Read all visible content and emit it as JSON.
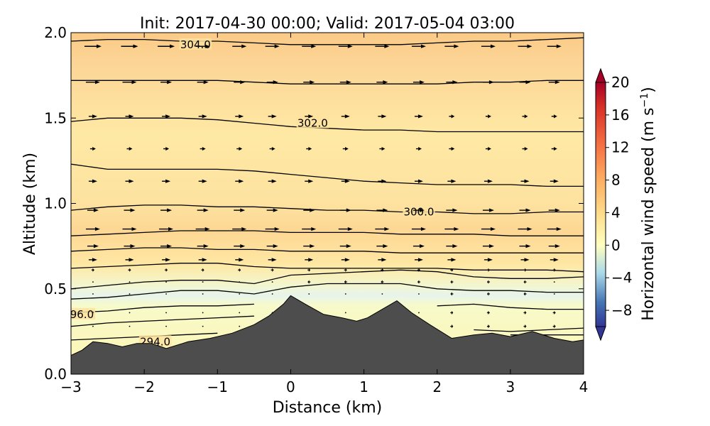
{
  "chart_data": {
    "type": "contour-cross-section",
    "title": "Init: 2017-04-30 00:00; Valid: 2017-05-04 03:00",
    "xlabel": "Distance (km)",
    "ylabel": "Altitude (km)",
    "xlim": [
      -3,
      4
    ],
    "ylim": [
      0,
      2
    ],
    "xticks": [
      -3,
      -2,
      -1,
      0,
      1,
      2,
      3,
      4
    ],
    "xtick_labels": [
      "−3",
      "−2",
      "−1",
      "0",
      "1",
      "2",
      "3",
      "4"
    ],
    "yticks": [
      0,
      0.5,
      1,
      1.5,
      2
    ],
    "ytick_labels": [
      "0.0",
      "0.5",
      "1.0",
      "1.5",
      "2.0"
    ],
    "colorbar": {
      "label": "Horizontal wind speed (m s",
      "label_superscript": "−1",
      "label_close": ")",
      "range": [
        -10,
        20
      ],
      "ticks": [
        20,
        16,
        12,
        8,
        4,
        0,
        -4,
        -8
      ],
      "tick_labels": [
        "20",
        "16",
        "12",
        "8",
        "4",
        "0",
        "−4",
        "−8"
      ],
      "extend": "both",
      "colormap": "RdYlBu_r"
    },
    "terrain": {
      "color": "#4d4d4d",
      "x": [
        -3,
        -2.85,
        -2.7,
        -2.5,
        -2.3,
        -2.1,
        -1.9,
        -1.7,
        -1.4,
        -1.1,
        -0.8,
        -0.5,
        -0.3,
        -0.1,
        0,
        0.2,
        0.45,
        0.7,
        0.9,
        1.05,
        1.25,
        1.45,
        1.65,
        1.9,
        2.2,
        2.5,
        2.75,
        3.0,
        3.3,
        3.6,
        3.85,
        4.0
      ],
      "y": [
        0.11,
        0.14,
        0.19,
        0.18,
        0.16,
        0.18,
        0.18,
        0.15,
        0.19,
        0.21,
        0.24,
        0.29,
        0.34,
        0.41,
        0.46,
        0.41,
        0.35,
        0.33,
        0.31,
        0.33,
        0.38,
        0.43,
        0.36,
        0.29,
        0.21,
        0.23,
        0.24,
        0.22,
        0.25,
        0.21,
        0.19,
        0.2
      ]
    },
    "theta_contours": {
      "x": [
        -3,
        -2.5,
        -2,
        -1.5,
        -1,
        -0.5,
        0,
        0.5,
        1,
        1.5,
        2,
        2.5,
        3,
        3.5,
        4
      ],
      "levels": [
        {
          "y": [
            1.95,
            1.96,
            1.96,
            1.95,
            1.95,
            1.94,
            1.93,
            1.93,
            1.93,
            1.93,
            1.94,
            1.95,
            1.95,
            1.96,
            1.97
          ]
        },
        {
          "y": [
            1.72,
            1.72,
            1.72,
            1.72,
            1.72,
            1.71,
            1.7,
            1.7,
            1.7,
            1.7,
            1.7,
            1.71,
            1.71,
            1.72,
            1.72
          ]
        },
        {
          "y": [
            1.48,
            1.5,
            1.5,
            1.5,
            1.49,
            1.47,
            1.45,
            1.44,
            1.43,
            1.43,
            1.42,
            1.42,
            1.42,
            1.42,
            1.42
          ]
        },
        {
          "y": [
            1.23,
            1.2,
            1.2,
            1.2,
            1.2,
            1.19,
            1.17,
            1.15,
            1.13,
            1.12,
            1.11,
            1.11,
            1.11,
            1.1,
            1.1
          ]
        },
        {
          "y": [
            0.96,
            0.98,
            0.99,
            0.99,
            0.98,
            0.98,
            0.97,
            0.96,
            0.96,
            0.95,
            0.95,
            0.94,
            0.94,
            0.95,
            0.95
          ]
        },
        {
          "y": [
            0.81,
            0.82,
            0.83,
            0.84,
            0.84,
            0.84,
            0.83,
            0.83,
            0.83,
            0.82,
            0.82,
            0.82,
            0.81,
            0.81,
            0.81
          ]
        },
        {
          "y": [
            0.72,
            0.73,
            0.74,
            0.74,
            0.73,
            0.73,
            0.72,
            0.72,
            0.72,
            0.71,
            0.71,
            0.71,
            0.71,
            0.71,
            0.71
          ]
        },
        {
          "y": [
            0.62,
            0.63,
            0.64,
            0.65,
            0.65,
            0.63,
            0.62,
            0.62,
            0.62,
            0.62,
            0.62,
            0.61,
            0.61,
            0.61,
            0.6
          ]
        },
        {
          "y": [
            0.5,
            0.52,
            0.54,
            0.55,
            0.55,
            0.53,
            0.58,
            0.59,
            0.6,
            0.61,
            0.6,
            0.57,
            0.56,
            0.56,
            0.57
          ]
        },
        {
          "y": [
            0.44,
            0.45,
            0.47,
            0.49,
            0.49,
            0.47,
            0.51,
            0.53,
            0.53,
            0.53,
            0.5,
            0.49,
            0.49,
            0.48,
            0.48
          ]
        },
        {
          "y": [
            0.36,
            0.37,
            0.39,
            0.4,
            0.4,
            0.41,
            null,
            0.44,
            null,
            null,
            0.4,
            0.41,
            0.39,
            0.38,
            0.38
          ]
        },
        {
          "y": [
            0.28,
            0.3,
            0.31,
            0.32,
            0.33,
            0.34,
            null,
            null,
            null,
            null,
            null,
            0.26,
            0.25,
            0.26,
            0.27
          ]
        },
        {
          "y": [
            0.2,
            0.21,
            0.22,
            0.23,
            0.24,
            null,
            null,
            null,
            null,
            null,
            null,
            null,
            0.23,
            0.23,
            0.23
          ]
        }
      ],
      "labels": [
        {
          "text": "304.0",
          "x": -1.3,
          "y": 1.93
        },
        {
          "text": "302.0",
          "x": 0.3,
          "y": 1.47
        },
        {
          "text": "300.0",
          "x": 1.75,
          "y": 0.95
        },
        {
          "text": "96.0",
          "x": -2.85,
          "y": 0.35
        },
        {
          "text": "294.0",
          "x": -1.85,
          "y": 0.19
        }
      ]
    },
    "wind_vectors": {
      "x": [
        -2.7,
        -2.2,
        -1.7,
        -1.2,
        -0.7,
        -0.25,
        0.25,
        0.75,
        1.25,
        1.75,
        2.2,
        2.7,
        3.2,
        3.6
      ],
      "rows": [
        {
          "y": 1.92,
          "u": [
            6,
            6,
            6,
            5,
            5,
            5,
            5,
            5,
            5,
            5,
            5,
            5,
            5,
            5
          ]
        },
        {
          "y": 1.71,
          "u": [
            5,
            5,
            4,
            4,
            4,
            4,
            4,
            4,
            4,
            4,
            4,
            4,
            4,
            4
          ]
        },
        {
          "y": 1.51,
          "u": [
            3,
            3,
            3,
            3,
            3,
            3,
            3,
            3,
            3,
            3,
            2,
            2,
            2,
            2
          ]
        },
        {
          "y": 1.32,
          "u": [
            2,
            2,
            2,
            2,
            2,
            2,
            2,
            2,
            2,
            2,
            2,
            2,
            2,
            2
          ]
        },
        {
          "y": 1.13,
          "u": [
            3,
            3,
            3,
            3,
            3,
            3,
            3,
            3,
            3,
            3,
            3,
            3,
            3,
            3
          ]
        },
        {
          "y": 0.96,
          "u": [
            4,
            4,
            4,
            4,
            4,
            4,
            4,
            4,
            4,
            4,
            4,
            4,
            4,
            4
          ]
        },
        {
          "y": 0.85,
          "u": [
            5,
            5,
            5,
            5,
            5,
            5,
            5,
            5,
            5,
            5,
            5,
            5,
            5,
            5
          ]
        },
        {
          "y": 0.75,
          "u": [
            4,
            4,
            4,
            4,
            4,
            4,
            4,
            4,
            4,
            4,
            4,
            4,
            4,
            4
          ]
        },
        {
          "y": 0.67,
          "u": [
            3,
            3,
            3,
            3,
            3,
            3,
            3,
            3,
            3,
            3,
            3,
            3,
            3,
            3
          ]
        },
        {
          "y": 0.61,
          "u": [
            1,
            1,
            1,
            1,
            1,
            1,
            1,
            1,
            1,
            1,
            1,
            1,
            1,
            1
          ]
        },
        {
          "y": 0.54,
          "u": [
            0,
            0,
            0,
            0,
            0,
            0,
            -1,
            -1,
            -1,
            -1,
            -1,
            -1,
            -1,
            0
          ]
        },
        {
          "y": 0.47,
          "u": [
            0,
            0,
            0,
            0,
            0,
            0,
            0,
            0,
            0,
            0,
            -1,
            -1,
            -1,
            0
          ]
        },
        {
          "y": 0.36,
          "u": [
            0,
            0,
            0,
            0,
            0,
            0,
            0,
            0,
            0,
            0,
            1,
            1,
            1,
            1
          ]
        },
        {
          "y": 0.28,
          "u": [
            0,
            0,
            0,
            0,
            0,
            0,
            0,
            0,
            0,
            0,
            1,
            1,
            1,
            1
          ]
        }
      ]
    }
  }
}
